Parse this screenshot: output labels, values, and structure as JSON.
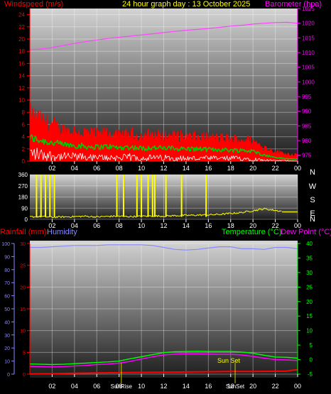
{
  "chart_data": [
    {
      "type": "line",
      "title": "24 hour graph day : 13 October 2025",
      "left_axis_label": "Windspeed (m/s)",
      "right_axis_label": "Barometer (hpa)",
      "left_ticks": [
        "0",
        "2",
        "4",
        "6",
        "8",
        "10",
        "12",
        "14",
        "16",
        "18",
        "20",
        "22",
        "24"
      ],
      "right_ticks": [
        "975",
        "980",
        "985",
        "990",
        "995",
        "1000",
        "1005",
        "1010",
        "1015",
        "1020",
        "1025"
      ],
      "x_ticks": [
        "02",
        "04",
        "06",
        "08",
        "10",
        "12",
        "14",
        "16",
        "18",
        "20",
        "22",
        "00"
      ],
      "left_range": [
        0,
        25
      ],
      "right_range": [
        973,
        1025
      ],
      "colors": {
        "wind_gust": "#ff0000",
        "wind_avg": "#00cc00",
        "wind_min": "#ffffff",
        "barometer": "#ff44ff",
        "left_axis": "#ff0000",
        "right_axis": "#ff00ff",
        "title": "#ffff00"
      },
      "series": [
        {
          "key": "barometer",
          "axis": "right",
          "x": [
            0,
            1,
            2,
            3,
            4,
            5,
            6,
            7,
            8,
            9,
            10,
            11,
            12,
            13,
            14,
            15,
            16,
            17,
            18,
            19,
            20,
            21,
            22,
            23,
            24
          ],
          "y": [
            1011.0,
            1011.2,
            1011.7,
            1012.4,
            1013.1,
            1013.7,
            1014.3,
            1014.8,
            1015.2,
            1015.6,
            1016.0,
            1016.4,
            1016.8,
            1017.2,
            1017.6,
            1017.9,
            1018.2,
            1018.6,
            1019.0,
            1019.3,
            1019.7,
            1020.0,
            1020.2,
            1020.3,
            1020.0
          ]
        },
        {
          "key": "wind_gust",
          "axis": "left",
          "x": [
            0,
            1,
            2,
            3,
            4,
            5,
            6,
            7,
            8,
            9,
            10,
            11,
            12,
            13,
            14,
            15,
            16,
            17,
            18,
            19,
            20,
            21,
            22,
            23,
            24
          ],
          "y": [
            7.5,
            6.5,
            5.8,
            5.0,
            4.8,
            4.5,
            4.2,
            4.6,
            4.0,
            4.4,
            4.0,
            4.3,
            4.0,
            4.1,
            3.9,
            3.8,
            3.8,
            3.6,
            3.5,
            3.5,
            3.2,
            2.2,
            1.6,
            1.2,
            1.0
          ]
        },
        {
          "key": "wind_avg",
          "axis": "left",
          "x": [
            0,
            1,
            2,
            3,
            4,
            5,
            6,
            7,
            8,
            9,
            10,
            11,
            12,
            13,
            14,
            15,
            16,
            17,
            18,
            19,
            20,
            21,
            22,
            23,
            24
          ],
          "y": [
            3.8,
            3.4,
            3.0,
            2.7,
            2.6,
            2.4,
            2.3,
            2.4,
            2.2,
            2.3,
            2.1,
            2.2,
            2.1,
            2.1,
            2.0,
            2.0,
            1.9,
            1.9,
            1.8,
            1.8,
            1.6,
            1.0,
            0.6,
            0.4,
            0.3
          ]
        },
        {
          "key": "wind_min",
          "axis": "left",
          "x": [
            0,
            1,
            2,
            3,
            4,
            5,
            6,
            7,
            8,
            9,
            10,
            11,
            12,
            13,
            14,
            15,
            16,
            17,
            18,
            19,
            20,
            21,
            22,
            23,
            24
          ],
          "y": [
            1.5,
            1.2,
            1.0,
            0.8,
            0.8,
            0.7,
            0.6,
            0.7,
            0.6,
            0.7,
            0.6,
            0.6,
            0.6,
            0.6,
            0.5,
            0.5,
            0.5,
            0.5,
            0.5,
            0.5,
            0.4,
            0.2,
            0.1,
            0.1,
            0.0
          ]
        }
      ]
    },
    {
      "type": "line",
      "left_ticks": [
        "0",
        "90",
        "180",
        "270",
        "360"
      ],
      "right_labels": [
        "N",
        "W",
        "S",
        "E",
        "N"
      ],
      "x_ticks": [
        "02",
        "04",
        "06",
        "08",
        "10",
        "12",
        "14",
        "16",
        "18",
        "20",
        "22",
        "00"
      ],
      "left_range": [
        0,
        360
      ],
      "colors": {
        "direction": "#ffff00",
        "left_axis": "#ffffff",
        "right_labels": "#ffffff"
      },
      "series": [
        {
          "key": "wind_direction",
          "x": [
            0,
            1,
            2,
            3,
            4,
            5,
            6,
            7,
            8,
            9,
            10,
            11,
            12,
            13,
            14,
            15,
            16,
            17,
            18,
            19,
            20,
            21,
            22,
            23,
            24
          ],
          "y": [
            20,
            22,
            18,
            20,
            22,
            25,
            20,
            24,
            26,
            22,
            25,
            28,
            26,
            30,
            32,
            34,
            36,
            40,
            48,
            55,
            70,
            85,
            72,
            60,
            58
          ]
        },
        {
          "key": "direction_spikes",
          "x": [
            0.6,
            1.0,
            1.4,
            1.8,
            2.2,
            7.8,
            8.4,
            9.6,
            10.0,
            10.6,
            11.0,
            11.2,
            12.2,
            13.6,
            15.8
          ],
          "y": [
            360,
            360,
            360,
            360,
            360,
            360,
            360,
            360,
            360,
            360,
            360,
            360,
            360,
            360,
            360
          ]
        }
      ]
    },
    {
      "type": "line",
      "left_label_a": "Rainfall (mm)",
      "left_label_b": "Humidity",
      "right_label_a": "Temperature (°C)",
      "right_label_b": "Dew Point (°C)",
      "rain_ticks": [
        "0",
        "5",
        "10",
        "15",
        "20",
        "25",
        "30"
      ],
      "hum_ticks": [
        "0",
        "10",
        "20",
        "30",
        "40",
        "50",
        "60",
        "70",
        "80",
        "90",
        "100"
      ],
      "temp_ticks": [
        "-5",
        "0",
        "5",
        "10",
        "15",
        "20",
        "25",
        "30",
        "35",
        "40"
      ],
      "x_ticks": [
        "02",
        "04",
        "06",
        "08",
        "10",
        "12",
        "14",
        "16",
        "18",
        "20",
        "22",
        "00"
      ],
      "sun_rise_label": "SunRise",
      "sun_set_label": "Sun Set",
      "sun_set_label_bottom": "SunSet",
      "rain_range": [
        0,
        30
      ],
      "temp_range": [
        -5,
        40
      ],
      "sun_rise_hour": 8.2,
      "sun_set_hour": 18.4,
      "colors": {
        "rainfall": "#ff0000",
        "humidity": "#8888ff",
        "temperature": "#00ff00",
        "dewpoint": "#ff00ff",
        "rain_axis": "#ff0000",
        "humidity_axis": "#8888ff",
        "temp_axis": "#00ff00",
        "dew_axis": "#ff00ff",
        "sun": "#cccc00"
      },
      "series": [
        {
          "key": "humidity",
          "axis": "humidity",
          "x": [
            0,
            1,
            2,
            3,
            4,
            5,
            6,
            7,
            8,
            9,
            10,
            11,
            12,
            13,
            14,
            15,
            16,
            17,
            18,
            19,
            20,
            21,
            22,
            23,
            24
          ],
          "y": [
            97,
            97,
            97.5,
            98,
            98.5,
            98.5,
            98.5,
            99,
            99,
            99,
            99,
            98.5,
            97,
            95.5,
            95,
            95.5,
            96.5,
            97.5,
            97.5,
            96,
            96,
            95.5,
            97,
            97,
            96
          ]
        },
        {
          "key": "temperature",
          "axis": "temp",
          "x": [
            0,
            1,
            2,
            3,
            4,
            5,
            6,
            7,
            8,
            9,
            10,
            11,
            12,
            13,
            14,
            15,
            16,
            17,
            18,
            19,
            20,
            21,
            22,
            23,
            24
          ],
          "y": [
            -1.5,
            -1.6,
            -1.7,
            -1.6,
            -1.4,
            -1.2,
            -1.0,
            -0.8,
            -0.5,
            0.3,
            1.0,
            1.7,
            2.4,
            2.7,
            2.8,
            2.9,
            2.8,
            2.8,
            2.8,
            2.6,
            2.2,
            1.5,
            0.9,
            0.8,
            0.5
          ]
        },
        {
          "key": "dewpoint",
          "axis": "temp",
          "x": [
            0,
            1,
            2,
            3,
            4,
            5,
            6,
            7,
            8,
            9,
            10,
            11,
            12,
            13,
            14,
            15,
            16,
            17,
            18,
            19,
            20,
            21,
            22,
            23,
            24
          ],
          "y": [
            -2.3,
            -2.4,
            -2.5,
            -2.4,
            -2.2,
            -2.0,
            -1.7,
            -1.5,
            -1.2,
            -0.6,
            0.2,
            1.0,
            1.6,
            1.9,
            2.0,
            2.0,
            1.9,
            1.8,
            1.8,
            1.6,
            1.1,
            0.5,
            0.0,
            -0.1,
            -0.3
          ]
        },
        {
          "key": "rainfall",
          "axis": "rain",
          "x": [
            0,
            2,
            4,
            6,
            8,
            10,
            12,
            14,
            16,
            18,
            20,
            22,
            23,
            23.5,
            24
          ],
          "y": [
            0.05,
            0.1,
            0.2,
            0.3,
            0.35,
            0.4,
            0.45,
            0.5,
            0.55,
            0.6,
            0.6,
            0.65,
            0.7,
            0.9,
            1.0
          ]
        }
      ]
    }
  ]
}
